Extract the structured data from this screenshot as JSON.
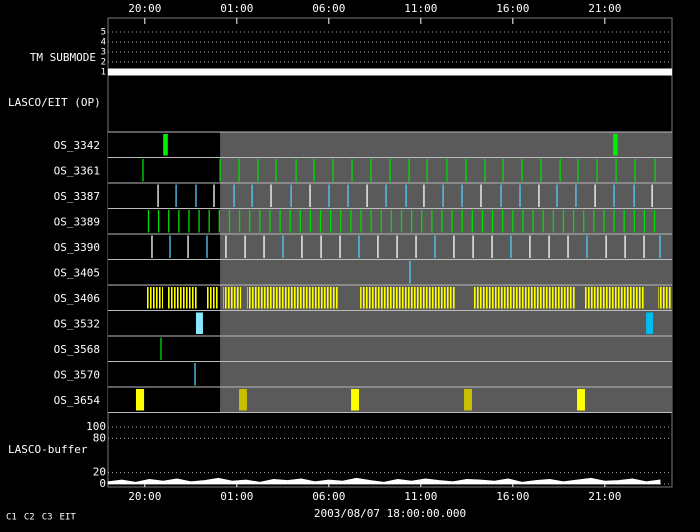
{
  "chart_data": {
    "type": "timeline",
    "xlabel": "2003/08/07 18:00:00.000",
    "xlim": [
      0,
      30.65
    ],
    "xticks": [
      {
        "value": 2,
        "label": "20:00"
      },
      {
        "value": 7,
        "label": "01:00"
      },
      {
        "value": 12,
        "label": "06:00"
      },
      {
        "value": 17,
        "label": "11:00"
      },
      {
        "value": 22,
        "label": "16:00"
      },
      {
        "value": 27,
        "label": "21:00"
      }
    ],
    "submode": {
      "label": "TM SUBMODE",
      "ylim": [
        0.6,
        5.4
      ],
      "yticks": [
        1,
        2,
        3,
        4,
        5
      ],
      "segments": [
        {
          "start": 0,
          "end": 30.65,
          "value": 1
        }
      ]
    },
    "section_label": "LASCO/EIT (OP)",
    "shaded_from": 6.09,
    "rows": [
      {
        "name": "OS_3342",
        "marks": [
          {
            "color": "#00ee00",
            "intervals": [
              [
                3.0,
                3.25
              ],
              [
                27.45,
                27.7
              ]
            ]
          }
        ]
      },
      {
        "name": "OS_3361",
        "marks": [
          {
            "color": "#00dd00",
            "times": [
              1.9,
              6.09,
              7.12,
              8.15,
              9.13,
              10.22,
              11.2,
              12.23,
              13.26,
              14.29,
              15.33,
              16.36,
              17.34,
              18.42,
              19.46,
              20.49,
              21.47,
              22.5,
              23.53,
              24.57,
              25.54,
              26.58,
              27.61,
              28.64,
              29.73
            ]
          }
        ]
      },
      {
        "name": "OS_3387",
        "marks": [
          {
            "color": "#55ccff",
            "times": [
              3.7,
              4.78,
              6.85,
              7.83,
              9.95,
              12.01,
              13.04,
              15.11,
              16.2,
              18.21,
              19.24,
              21.36,
              22.39,
              24.4,
              25.43,
              27.5,
              28.59
            ]
          },
          {
            "color": "#ffffff",
            "times": [
              2.72,
              5.76,
              8.86,
              10.98,
              14.08,
              17.17,
              20.27,
              23.42,
              26.47,
              29.57
            ]
          }
        ]
      },
      {
        "name": "OS_3389",
        "marks": [
          {
            "color": "#00dd00",
            "times": [
              2.2,
              2.75,
              3.3,
              3.85,
              4.4,
              4.95,
              5.5,
              6.05,
              6.6,
              7.15,
              7.7,
              8.25,
              8.8,
              9.35,
              9.9,
              10.45,
              11.0,
              11.55,
              12.1,
              12.65,
              13.2,
              13.75,
              14.3,
              14.85,
              15.4,
              15.95,
              16.5,
              17.05,
              17.6,
              18.15,
              18.7,
              19.25,
              19.8,
              20.35,
              20.9,
              21.45,
              22.0,
              22.55,
              23.1,
              23.65,
              24.2,
              24.75,
              25.3,
              25.85,
              26.4,
              26.95,
              27.5,
              28.05,
              28.6,
              29.15,
              29.7
            ]
          }
        ]
      },
      {
        "name": "OS_3390",
        "marks": [
          {
            "color": "#55ccff",
            "times": [
              3.37,
              5.38,
              9.51,
              13.64,
              17.77,
              21.9,
              26.03,
              30.0
            ]
          },
          {
            "color": "#ffffff",
            "times": [
              2.39,
              4.35,
              6.41,
              7.45,
              8.48,
              10.54,
              11.58,
              12.61,
              14.67,
              15.71,
              16.74,
              18.8,
              19.84,
              20.87,
              22.93,
              23.97,
              25.0,
              27.07,
              28.1,
              29.13
            ]
          }
        ]
      },
      {
        "name": "OS_3405",
        "marks": [
          {
            "color": "#55ccff",
            "times": [
              16.41
            ]
          }
        ]
      },
      {
        "name": "OS_3406",
        "marks": [
          {
            "color": "#ffff00",
            "pattern": "stripes",
            "intervals": [
              [
                2.07,
                2.99
              ],
              [
                3.26,
                4.89
              ],
              [
                5.33,
                6.03
              ],
              [
                6.25,
                7.23
              ],
              [
                7.55,
                12.55
              ],
              [
                13.7,
                18.86
              ],
              [
                19.89,
                25.43
              ],
              [
                25.87,
                29.18
              ],
              [
                29.89,
                30.65
              ]
            ]
          }
        ]
      },
      {
        "name": "OS_3532",
        "marks": [
          {
            "color": "#88e8ff",
            "intervals": [
              [
                4.78,
                5.16
              ]
            ]
          },
          {
            "color": "#00bbee",
            "intervals": [
              [
                29.24,
                29.62
              ]
            ]
          }
        ]
      },
      {
        "name": "OS_3568",
        "marks": [
          {
            "color": "#00dd00",
            "times": [
              2.88
            ]
          }
        ]
      },
      {
        "name": "OS_3570",
        "marks": [
          {
            "color": "#55ccff",
            "times": [
              4.73
            ]
          }
        ]
      },
      {
        "name": "OS_3654",
        "marks": [
          {
            "color": "#ffff00",
            "intervals": [
              [
                1.52,
                1.96
              ],
              [
                13.21,
                13.64
              ],
              [
                25.49,
                25.92
              ]
            ]
          },
          {
            "color": "#c8c000",
            "intervals": [
              [
                7.12,
                7.55
              ],
              [
                19.35,
                19.78
              ]
            ]
          }
        ]
      }
    ],
    "buffer": {
      "label": "LASCO-buffer",
      "ylim": [
        0,
        100
      ],
      "yticks": [
        0,
        20,
        80,
        100
      ],
      "x": [
        0,
        0.75,
        1.5,
        2.25,
        3,
        3.75,
        4.5,
        5.25,
        6,
        6.75,
        7.5,
        8.25,
        9,
        9.75,
        10.5,
        11.25,
        12,
        12.75,
        13.5,
        14.25,
        15,
        15.75,
        16.5,
        17.25,
        18,
        18.75,
        19.5,
        20.25,
        21,
        21.75,
        22.5,
        23.25,
        24,
        24.75,
        25.5,
        26.25,
        27,
        27.75,
        28.5,
        29.25,
        30
      ],
      "values": [
        4,
        7,
        3,
        8,
        5,
        9,
        4,
        6,
        10,
        5,
        7,
        3,
        8,
        6,
        9,
        4,
        7,
        5,
        10,
        6,
        3,
        8,
        5,
        9,
        6,
        4,
        8,
        7,
        5,
        9,
        3,
        6,
        8,
        4,
        7,
        10,
        5,
        6,
        9,
        4,
        7
      ]
    },
    "legend": [
      {
        "name": "C1",
        "color": "#ff2020"
      },
      {
        "name": "C2",
        "color": "#20e020"
      },
      {
        "name": "C3",
        "color": "#ffffff"
      },
      {
        "name": "EIT",
        "color": "#ffffff"
      }
    ]
  }
}
